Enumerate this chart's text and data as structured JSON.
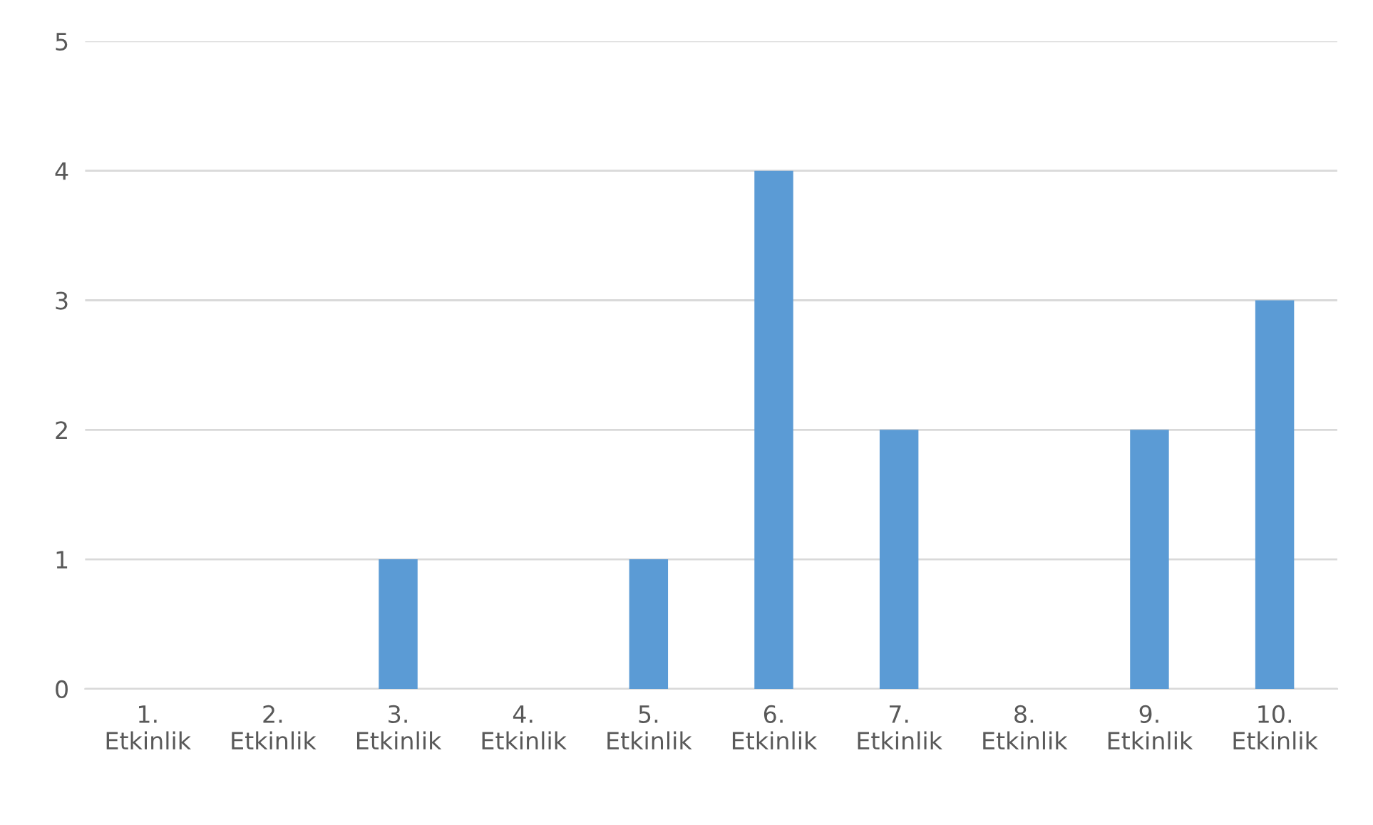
{
  "chart_data": {
    "type": "bar",
    "categories": [
      "1.\nEtkinlik",
      "2.\nEtkinlik",
      "3.\nEtkinlik",
      "4.\nEtkinlik",
      "5.\nEtkinlik",
      "6.\nEtkinlik",
      "7.\nEtkinlik",
      "8.\nEtkinlik",
      "9.\nEtkinlik",
      "10.\nEtkinlik"
    ],
    "values": [
      0,
      0,
      1,
      0,
      1,
      4,
      2,
      0,
      2,
      3
    ],
    "color": "#5b9bd5",
    "ylim": [
      0,
      5
    ],
    "yticks": [
      0,
      1,
      2,
      3,
      4,
      5
    ],
    "grid": "y",
    "legend": false
  }
}
